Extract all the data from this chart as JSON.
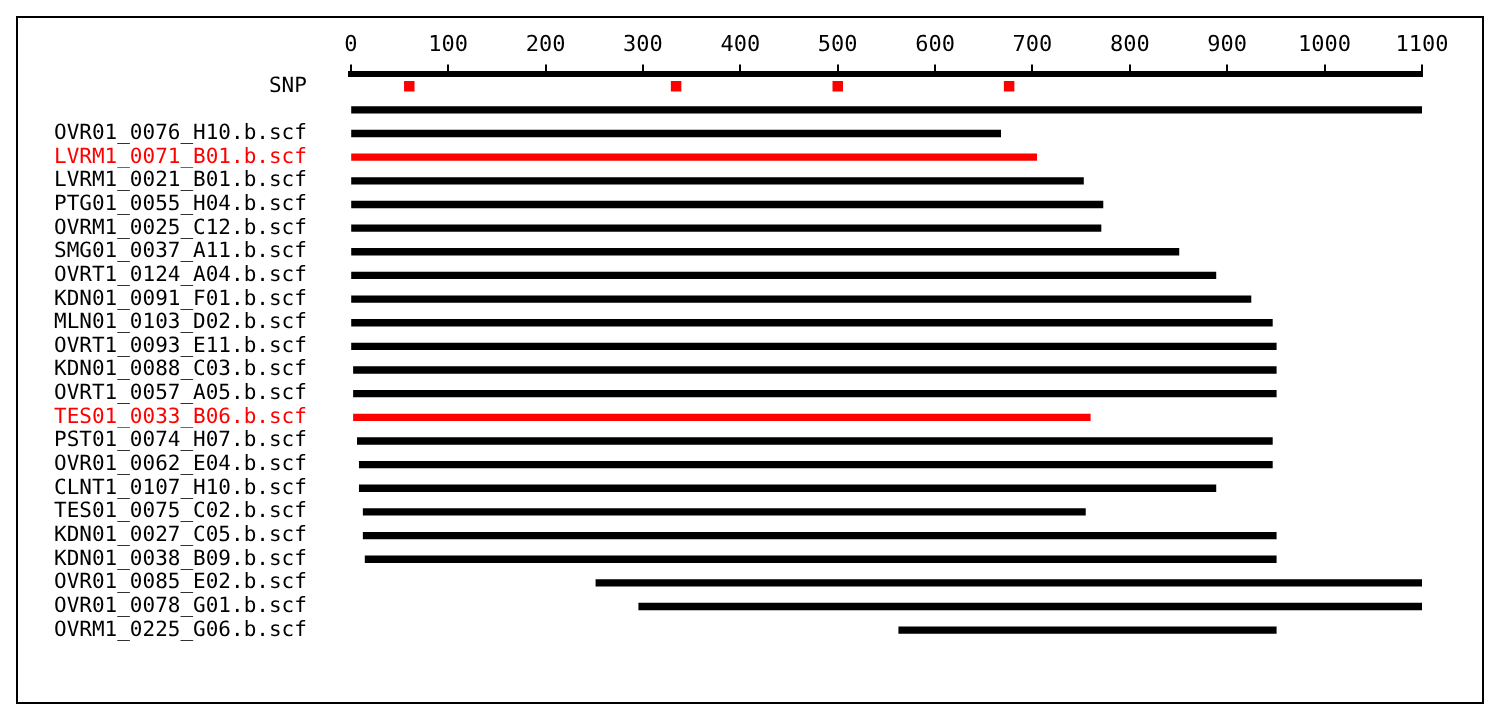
{
  "chart_data": {
    "type": "bar",
    "orientation": "horizontal",
    "categories": [
      "SNP",
      null,
      "OVR01_0076_H10.b.scf",
      "LVRM1_0071_B01.b.scf",
      "LVRM1_0021_B01.b.scf",
      "PTG01_0055_H04.b.scf",
      "OVRM1_0025_C12.b.scf",
      "SMG01_0037_A11.b.scf",
      "OVRT1_0124_A04.b.scf",
      "KDN01_0091_F01.b.scf",
      "MLN01_0103_D02.b.scf",
      "OVRT1_0093_E11.b.scf",
      "KDN01_0088_C03.b.scf",
      "OVRT1_0057_A05.b.scf",
      "TES01_0033_B06.b.scf",
      "PST01_0074_H07.b.scf",
      "OVR01_0062_E04.b.scf",
      "CLNT1_0107_H10.b.scf",
      "TES01_0075_C02.b.scf",
      "KDN01_0027_C05.b.scf",
      "KDN01_0038_B09.b.scf",
      "OVR01_0085_E02.b.scf",
      "OVR01_0078_G01.b.scf",
      "OVRM1_0225_G06.b.scf"
    ],
    "base": [
      null,
      0,
      0,
      0,
      0,
      0,
      0,
      0,
      0,
      0,
      0,
      0,
      3,
      3,
      3,
      7,
      9,
      9,
      13,
      13,
      15,
      252,
      296,
      563
    ],
    "values": [
      null,
      1100,
      667,
      704,
      752,
      772,
      770,
      850,
      888,
      924,
      946,
      950,
      947,
      947,
      756,
      939,
      937,
      879,
      741,
      937,
      935,
      848,
      804,
      387
    ],
    "colors": [
      "#000000",
      "#000000",
      "#000000",
      "#ff0000",
      "#000000",
      "#000000",
      "#000000",
      "#000000",
      "#000000",
      "#000000",
      "#000000",
      "#000000",
      "#000000",
      "#000000",
      "#ff0000",
      "#000000",
      "#000000",
      "#000000",
      "#000000",
      "#000000",
      "#000000",
      "#000000",
      "#000000",
      "#000000"
    ],
    "series": [
      {
        "type": "scatter",
        "marker": "square",
        "color": "#ff0000",
        "x": [
          "SNP",
          "SNP",
          "SNP",
          "SNP"
        ],
        "values": [
          60,
          334,
          500,
          676
        ]
      }
    ],
    "xlim": [
      0,
      1100
    ],
    "xticks": [
      0,
      100,
      200,
      300,
      400,
      500,
      600,
      700,
      800,
      900,
      1000,
      1100
    ]
  }
}
